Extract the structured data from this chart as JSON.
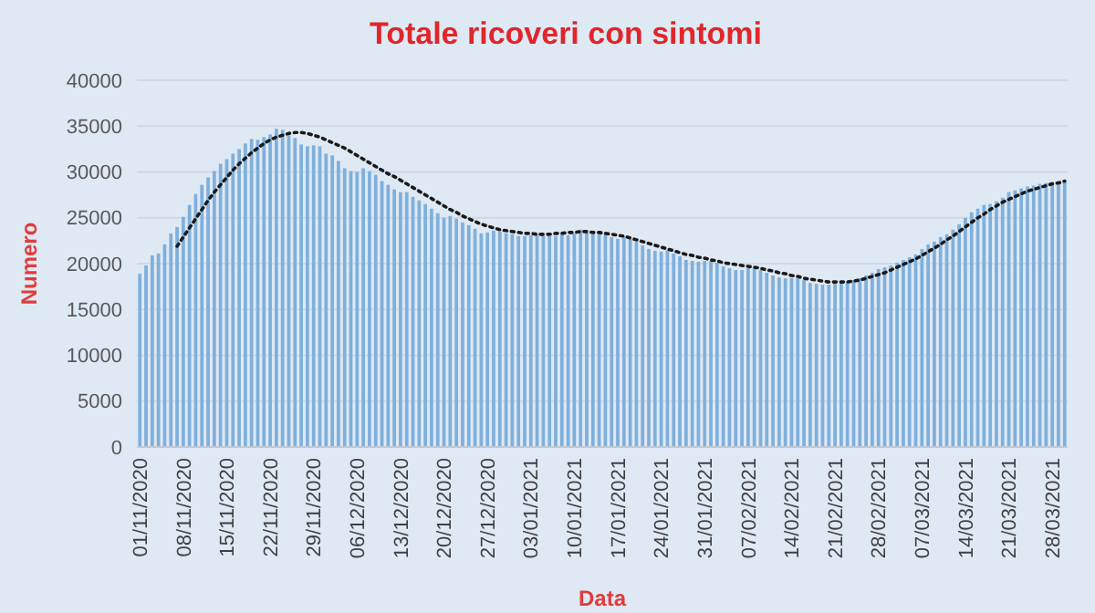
{
  "chart_data": {
    "type": "bar",
    "title": "Totale ricoveri con sintomi",
    "xlabel": "Data",
    "ylabel": "Numero",
    "categories": [
      "01/11/2020",
      null,
      null,
      null,
      null,
      null,
      null,
      "08/11/2020",
      null,
      null,
      null,
      null,
      null,
      null,
      "15/11/2020",
      null,
      null,
      null,
      null,
      null,
      null,
      "22/11/2020",
      null,
      null,
      null,
      null,
      null,
      null,
      "29/11/2020",
      null,
      null,
      null,
      null,
      null,
      null,
      "06/12/2020",
      null,
      null,
      null,
      null,
      null,
      null,
      "13/12/2020",
      null,
      null,
      null,
      null,
      null,
      null,
      "20/12/2020",
      null,
      null,
      null,
      null,
      null,
      null,
      "27/12/2020",
      null,
      null,
      null,
      null,
      null,
      null,
      "03/01/2021",
      null,
      null,
      null,
      null,
      null,
      null,
      "10/01/2021",
      null,
      null,
      null,
      null,
      null,
      null,
      "17/01/2021",
      null,
      null,
      null,
      null,
      null,
      null,
      "24/01/2021",
      null,
      null,
      null,
      null,
      null,
      null,
      "31/01/2021",
      null,
      null,
      null,
      null,
      null,
      null,
      "07/02/2021",
      null,
      null,
      null,
      null,
      null,
      null,
      "14/02/2021",
      null,
      null,
      null,
      null,
      null,
      null,
      "21/02/2021",
      null,
      null,
      null,
      null,
      null,
      null,
      "28/02/2021",
      null,
      null,
      null,
      null,
      null,
      null,
      "07/03/2021",
      null,
      null,
      null,
      null,
      null,
      null,
      "14/03/2021",
      null,
      null,
      null,
      null,
      null,
      null,
      "21/03/2021",
      null,
      null,
      null,
      null,
      null,
      null,
      "28/03/2021",
      null,
      null
    ],
    "series": [
      {
        "color": "#7fb0dc",
        "values": [
          18900,
          19800,
          20900,
          21100,
          22100,
          23300,
          24000,
          25100,
          26400,
          27600,
          28600,
          29400,
          30100,
          30900,
          31400,
          32000,
          32500,
          33100,
          33600,
          33500,
          33800,
          34100,
          34700,
          34600,
          34000,
          33700,
          33000,
          32800,
          32900,
          32800,
          32000,
          31800,
          31200,
          30400,
          30100,
          30000,
          30400,
          30100,
          29700,
          29000,
          28600,
          28100,
          27800,
          27800,
          27300,
          26900,
          26500,
          26000,
          25500,
          25000,
          25200,
          24900,
          24500,
          24200,
          23800,
          23300,
          23400,
          23600,
          23500,
          23300,
          23200,
          23000,
          23000,
          23100,
          23200,
          23100,
          23000,
          23000,
          23200,
          23100,
          23300,
          23700,
          23400,
          23400,
          23300,
          23300,
          22900,
          22700,
          23000,
          22700,
          22400,
          22000,
          21600,
          21400,
          21300,
          21500,
          21100,
          20800,
          20400,
          20300,
          20200,
          20300,
          20300,
          20100,
          19700,
          19500,
          19300,
          19300,
          19500,
          19600,
          19300,
          19000,
          18700,
          18500,
          18400,
          18400,
          18400,
          18200,
          17900,
          17800,
          17700,
          17700,
          17800,
          18000,
          18000,
          18200,
          18400,
          18700,
          19000,
          19400,
          19600,
          19800,
          20100,
          20400,
          20700,
          21000,
          21600,
          22100,
          22400,
          22900,
          23200,
          23700,
          24300,
          25000,
          25600,
          26000,
          26400,
          26500,
          26800,
          27200,
          27800,
          28000,
          28200,
          28400,
          28500,
          28700,
          28800,
          28900,
          29000,
          29100
        ]
      },
      {
        "type": "line",
        "color": "#1a1a1a",
        "line_style": "dotted",
        "marker": "none",
        "values": [
          null,
          null,
          null,
          null,
          null,
          null,
          21900,
          22900,
          23900,
          24900,
          25900,
          26900,
          27800,
          28600,
          29400,
          30200,
          30900,
          31500,
          32100,
          32600,
          33100,
          33500,
          33800,
          34000,
          34200,
          34300,
          34300,
          34200,
          34000,
          33800,
          33500,
          33200,
          32900,
          32600,
          32200,
          31800,
          31400,
          31000,
          30600,
          30200,
          29800,
          29500,
          29100,
          28700,
          28300,
          27900,
          27500,
          27100,
          26700,
          26300,
          25900,
          25600,
          25200,
          24900,
          24600,
          24300,
          24100,
          23900,
          23700,
          23600,
          23500,
          23400,
          23300,
          23300,
          23200,
          23200,
          23200,
          23300,
          23300,
          23400,
          23400,
          23500,
          23500,
          23400,
          23400,
          23300,
          23200,
          23100,
          23000,
          22800,
          22600,
          22400,
          22200,
          22000,
          21800,
          21600,
          21400,
          21200,
          21000,
          20900,
          20700,
          20600,
          20400,
          20300,
          20100,
          20000,
          19900,
          19800,
          19700,
          19600,
          19500,
          19300,
          19200,
          19000,
          18900,
          18700,
          18600,
          18400,
          18300,
          18200,
          18100,
          18000,
          18000,
          18000,
          18000,
          18100,
          18200,
          18400,
          18600,
          18800,
          19000,
          19300,
          19600,
          19900,
          20200,
          20500,
          20900,
          21300,
          21700,
          22100,
          22600,
          23000,
          23500,
          24000,
          24500,
          25000,
          25400,
          25900,
          26300,
          26700,
          27000,
          27300,
          27600,
          27900,
          28100,
          28300,
          28500,
          28700,
          28800,
          29000
        ]
      }
    ],
    "ylim": [
      0,
      40000
    ],
    "yticks": [
      0,
      5000,
      10000,
      15000,
      20000,
      25000,
      30000,
      35000,
      40000
    ],
    "grid": "y"
  }
}
